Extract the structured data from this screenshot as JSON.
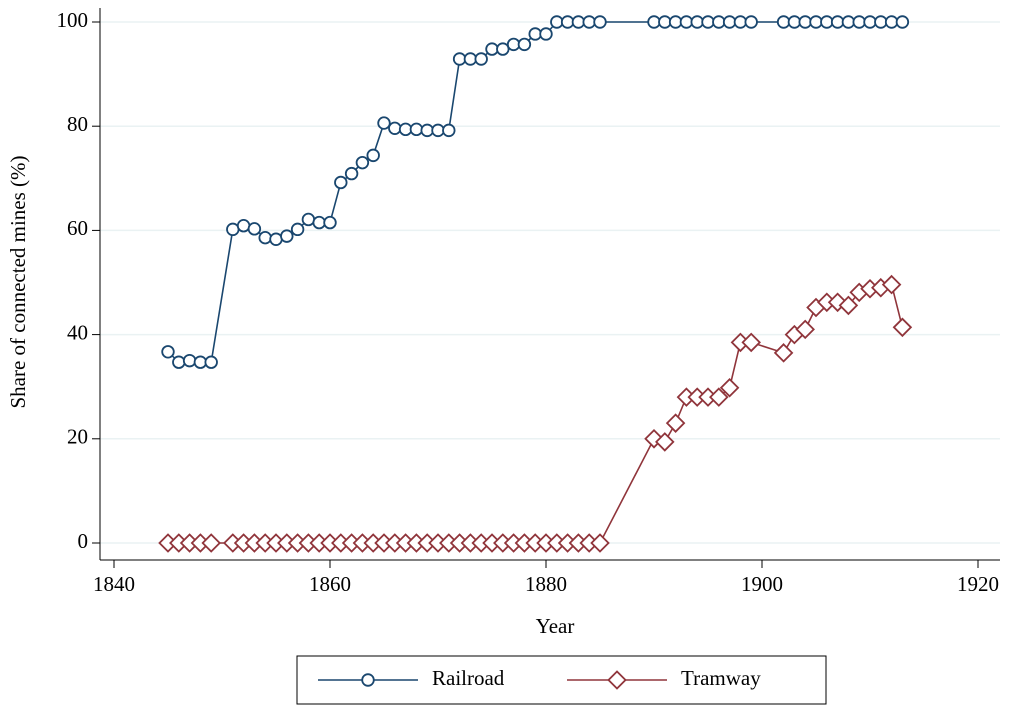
{
  "chart_data": {
    "type": "line",
    "x_label": "Year",
    "y_label": "Share of connected mines (%)",
    "x": [
      1845,
      1846,
      1847,
      1848,
      1849,
      1851,
      1852,
      1853,
      1854,
      1855,
      1856,
      1857,
      1858,
      1859,
      1860,
      1861,
      1862,
      1863,
      1864,
      1865,
      1866,
      1867,
      1868,
      1869,
      1870,
      1871,
      1872,
      1873,
      1874,
      1875,
      1876,
      1877,
      1878,
      1879,
      1880,
      1881,
      1882,
      1883,
      1884,
      1885,
      1890,
      1891,
      1892,
      1893,
      1894,
      1895,
      1896,
      1897,
      1898,
      1899,
      1902,
      1903,
      1904,
      1905,
      1906,
      1907,
      1908,
      1909,
      1910,
      1911,
      1912,
      1913
    ],
    "series": [
      {
        "name": "Railroad",
        "color": "#1a476f",
        "marker": "circle",
        "values": [
          36.7,
          34.7,
          35,
          34.7,
          34.7,
          60.2,
          60.9,
          60.3,
          58.6,
          58.3,
          58.9,
          60.2,
          62.1,
          61.5,
          61.5,
          69.2,
          70.9,
          73,
          74.4,
          80.6,
          79.6,
          79.4,
          79.4,
          79.2,
          79.2,
          79.2,
          92.9,
          92.9,
          92.9,
          94.8,
          94.8,
          95.7,
          95.7,
          97.7,
          97.7,
          100,
          100,
          100,
          100,
          100,
          100,
          100,
          100,
          100,
          100,
          100,
          100,
          100,
          100,
          100,
          100,
          100,
          100,
          100,
          100,
          100,
          100,
          100,
          100,
          100,
          100,
          100
        ]
      },
      {
        "name": "Tramway",
        "color": "#90353b",
        "marker": "diamond",
        "values": [
          0,
          0,
          0,
          0,
          0,
          0,
          0,
          0,
          0,
          0,
          0,
          0,
          0,
          0,
          0,
          0,
          0,
          0,
          0,
          0,
          0,
          0,
          0,
          0,
          0,
          0,
          0,
          0,
          0,
          0,
          0,
          0,
          0,
          0,
          0,
          0,
          0,
          0,
          0,
          0,
          20,
          19.4,
          23,
          28,
          28,
          28,
          28,
          29.8,
          38.5,
          38.5,
          36.5,
          40,
          41,
          45.2,
          46.2,
          46.2,
          45.6,
          48.1,
          48.8,
          49,
          49.6,
          41.4
        ]
      }
    ],
    "xlim": [
      1840,
      1920
    ],
    "xticks": [
      1840,
      1860,
      1880,
      1900,
      1920
    ],
    "ylim": [
      0,
      100
    ],
    "yticks": [
      0,
      20,
      40,
      60,
      80,
      100
    ],
    "grid": true,
    "legend": "bottom"
  }
}
